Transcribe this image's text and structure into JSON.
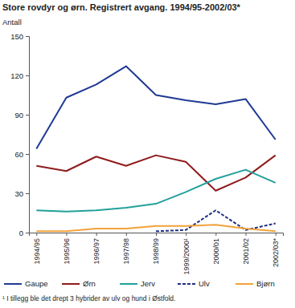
{
  "chart_data": {
    "type": "line",
    "title": "Store rovdyr og ørn. Registrert avgang. 1994/95-2002/03*",
    "y_label": "Antall",
    "categories": [
      "1994/95",
      "1995/96",
      "1996/97",
      "1997/98",
      "1998/99",
      "1999/2000¹",
      "2000/01",
      "2001/02",
      "2002/03*"
    ],
    "series": [
      {
        "name": "Gaupe",
        "color": "#1f3a93",
        "values": [
          64,
          103,
          113,
          127,
          105,
          101,
          98,
          102,
          71
        ]
      },
      {
        "name": "Ørn",
        "color": "#8e1b1b",
        "values": [
          51,
          47,
          58,
          51,
          59,
          54,
          32,
          42,
          59
        ]
      },
      {
        "name": "Jerv",
        "color": "#23a09b",
        "values": [
          17,
          16,
          17,
          19,
          22,
          31,
          41,
          48,
          38
        ]
      },
      {
        "name": "Ulv",
        "color": "#1c2f80",
        "line_style": "dashed",
        "values": [
          null,
          null,
          null,
          null,
          1,
          2,
          17,
          2,
          7
        ]
      },
      {
        "name": "Bjørn",
        "color": "#f2a23a",
        "values": [
          1,
          1,
          3,
          3,
          5,
          5,
          6,
          3,
          1
        ]
      }
    ],
    "ylim": [
      0,
      150
    ],
    "yticks": [
      0,
      30,
      60,
      90,
      120,
      150
    ],
    "grid": false,
    "legend": "bottom",
    "annotations": [
      "¹ I tillegg ble det drept 3 hybrider av ulv og hund i Østfold."
    ]
  }
}
